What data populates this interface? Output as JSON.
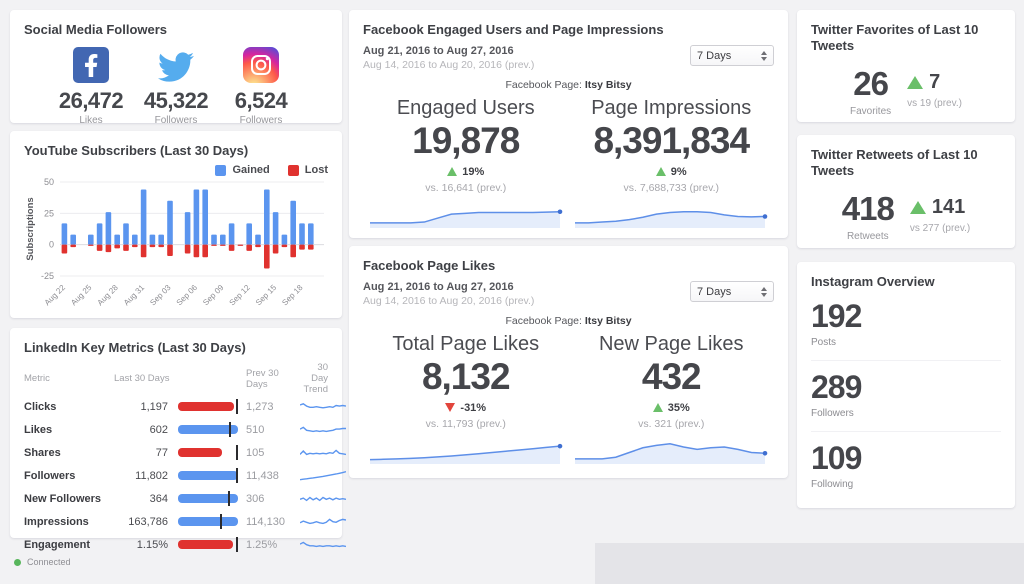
{
  "colors": {
    "blue": "#5b95ef",
    "red": "#e0322f",
    "green": "#6abf69",
    "red_delta": "#e2453c",
    "spark_line": "#5e8fe8",
    "spark_fill": "rgba(94,143,232,0.16)",
    "spark_dot": "#3f6fd1",
    "facebook_brand": "#4267b2",
    "twitter_brand": "#55acee"
  },
  "social_followers": {
    "title": "Social Media Followers",
    "items": [
      {
        "network": "facebook",
        "value": "26,472",
        "label": "Likes"
      },
      {
        "network": "twitter",
        "value": "45,322",
        "label": "Followers"
      },
      {
        "network": "instagram",
        "value": "6,524",
        "label": "Followers"
      }
    ]
  },
  "youtube": {
    "title": "YouTube Subscribers (Last 30 Days)",
    "legend": [
      {
        "label": "Gained",
        "color": "#5b95ef"
      },
      {
        "label": "Lost",
        "color": "#e0322f"
      }
    ],
    "chart_data": {
      "type": "bar",
      "stacked_at_zero": true,
      "ylabel": "Subscriptions",
      "yticks": [
        50,
        25,
        0,
        -25
      ],
      "ylim": [
        -25,
        50
      ],
      "tick_every": 3,
      "categories": [
        "Aug 22",
        "Aug 23",
        "Aug 24",
        "Aug 25",
        "Aug 26",
        "Aug 27",
        "Aug 28",
        "Aug 29",
        "Aug 30",
        "Aug 31",
        "Sep 01",
        "Sep 02",
        "Sep 03",
        "Sep 04",
        "Sep 05",
        "Sep 06",
        "Sep 07",
        "Sep 08",
        "Sep 09",
        "Sep 10",
        "Sep 11",
        "Sep 12",
        "Sep 13",
        "Sep 14",
        "Sep 15",
        "Sep 16",
        "Sep 17",
        "Sep 18",
        "Sep 19",
        "Sep 20"
      ],
      "series": [
        {
          "name": "Gained",
          "values": [
            17,
            8,
            0,
            8,
            17,
            26,
            8,
            17,
            8,
            44,
            8,
            8,
            35,
            0,
            26,
            44,
            44,
            8,
            8,
            17,
            0,
            17,
            8,
            44,
            26,
            8,
            35,
            17,
            17,
            0
          ]
        },
        {
          "name": "Lost",
          "values": [
            -7,
            -2,
            0,
            -1,
            -5,
            -6,
            -3,
            -5,
            -2,
            -10,
            -2,
            -2,
            -9,
            0,
            -7,
            -10,
            -10,
            -1,
            -1,
            -5,
            -1,
            -5,
            -2,
            -19,
            -7,
            -2,
            -10,
            -4,
            -4,
            0
          ]
        }
      ]
    }
  },
  "linkedin": {
    "title": "LinkedIn Key Metrics (Last 30 Days)",
    "headers": {
      "metric": "Metric",
      "last30": "Last 30 Days",
      "prev30": "Prev 30 Days",
      "trend": "30 Day Trend"
    },
    "rows": [
      {
        "metric": "Clicks",
        "current": "1,197",
        "current_num": 1197,
        "prev": "1,273",
        "prev_num": 1273,
        "bar_color": "red",
        "trend": [
          7,
          8,
          6,
          5,
          5,
          5.5,
          5,
          4.5,
          5,
          5.5,
          5,
          6.5,
          6,
          6.5,
          6
        ]
      },
      {
        "metric": "Likes",
        "current": "602",
        "current_num": 602,
        "prev": "510",
        "prev_num": 510,
        "bar_color": "blue",
        "trend": [
          6,
          7.5,
          5,
          4.5,
          4,
          4.5,
          4,
          4.5,
          4,
          4.5,
          5,
          6,
          6,
          6.5,
          6.5
        ]
      },
      {
        "metric": "Shares",
        "current": "77",
        "current_num": 77,
        "prev": "105",
        "prev_num": 105,
        "bar_color": "red",
        "trend": [
          4,
          7,
          4,
          5,
          4.5,
          5,
          4.5,
          5,
          4.5,
          5.5,
          5,
          7.5,
          5,
          4.5,
          4
        ]
      },
      {
        "metric": "Followers",
        "current": "11,802",
        "current_num": 11802,
        "prev": "11,438",
        "prev_num": 11438,
        "bar_color": "blue",
        "trend": [
          2,
          2.4,
          2.8,
          3.2,
          3.6,
          4,
          4.4,
          4.9,
          5.4,
          5.9,
          6.4,
          7,
          7.6,
          8.2,
          9
        ]
      },
      {
        "metric": "New Followers",
        "current": "364",
        "current_num": 364,
        "prev": "306",
        "prev_num": 306,
        "bar_color": "blue",
        "trend": [
          5,
          6,
          4,
          6.5,
          4.5,
          6,
          4,
          6.5,
          5,
          6,
          4.5,
          6,
          5,
          5.5,
          5
        ]
      },
      {
        "metric": "Impressions",
        "current": "163,786",
        "current_num": 163786,
        "prev": "114,130",
        "prev_num": 114130,
        "bar_color": "blue",
        "trend": [
          4.5,
          6,
          5,
          4,
          4.5,
          5.5,
          4.5,
          4,
          5,
          7.5,
          5.5,
          5,
          6.5,
          7.5,
          7
        ]
      },
      {
        "metric": "Engagement",
        "current": "1.15%",
        "current_num": 1.15,
        "prev": "1.25%",
        "prev_num": 1.25,
        "bar_color": "red",
        "trend": [
          6,
          7.5,
          5.5,
          4.5,
          4.5,
          4,
          4.5,
          4,
          4.5,
          4.5,
          4,
          4.5,
          4,
          4.5,
          4
        ]
      }
    ]
  },
  "facebook_engagement": {
    "title": "Facebook Engaged Users and Page Impressions",
    "date_range": "Aug 21, 2016 to Aug 27, 2016",
    "prev_range": "Aug 14, 2016 to Aug 20, 2016 (prev.)",
    "period_selector": "7 Days",
    "page_label": "Facebook Page:",
    "page_name": "Itsy Bitsy",
    "metrics": [
      {
        "heading": "Engaged Users",
        "value": "19,878",
        "delta": "19%",
        "delta_dir": "up",
        "vs": "vs. 16,641 (prev.)",
        "spark": [
          2,
          2,
          2,
          2,
          2.5,
          5,
          7.5,
          8,
          8.5,
          8.5,
          8.5,
          8.5,
          8.5,
          8.8,
          9
        ]
      },
      {
        "heading": "Page Impressions",
        "value": "8,391,834",
        "delta": "9%",
        "delta_dir": "up",
        "vs": "vs. 7,688,733 (prev.)",
        "spark": [
          2,
          2,
          2.5,
          3,
          4,
          5.5,
          7.5,
          8.5,
          9,
          9,
          8.5,
          7,
          6,
          5.8,
          6
        ]
      }
    ]
  },
  "facebook_likes": {
    "title": "Facebook Page Likes",
    "date_range": "Aug 21, 2016 to Aug 27, 2016",
    "prev_range": "Aug 14, 2016 to Aug 20, 2016 (prev.)",
    "period_selector": "7 Days",
    "page_label": "Facebook Page:",
    "page_name": "Itsy Bitsy",
    "metrics": [
      {
        "heading": "Total Page Likes",
        "value": "8,132",
        "delta": "-31%",
        "delta_dir": "down",
        "vs": "vs. 11,793 (prev.)",
        "spark": [
          1.5,
          1.7,
          2,
          2.3,
          2.7,
          3.2,
          3.8,
          4.5,
          5.2,
          6,
          6.8,
          7.6,
          8.4,
          9.2,
          10
        ]
      },
      {
        "heading": "New Page Likes",
        "value": "432",
        "delta": "35%",
        "delta_dir": "up",
        "vs": "vs. 321 (prev.)",
        "spark": [
          2,
          2,
          2,
          3,
          6,
          9,
          10.5,
          11.5,
          9.5,
          8,
          9,
          9.5,
          8,
          6,
          5.5
        ]
      }
    ]
  },
  "twitter_favorites": {
    "title": "Twitter Favorites of Last 10 Tweets",
    "value": "26",
    "label": "Favorites",
    "delta": "7",
    "delta_dir": "up",
    "vs": "vs 19 (prev.)"
  },
  "twitter_retweets": {
    "title": "Twitter Retweets of Last 10 Tweets",
    "value": "418",
    "label": "Retweets",
    "delta": "141",
    "delta_dir": "up",
    "vs": "vs 277 (prev.)"
  },
  "instagram_overview": {
    "title": "Instagram Overview",
    "stats": [
      {
        "value": "192",
        "label": "Posts"
      },
      {
        "value": "289",
        "label": "Followers"
      },
      {
        "value": "109",
        "label": "Following"
      }
    ]
  },
  "footer": {
    "connected_label": "Connected"
  }
}
